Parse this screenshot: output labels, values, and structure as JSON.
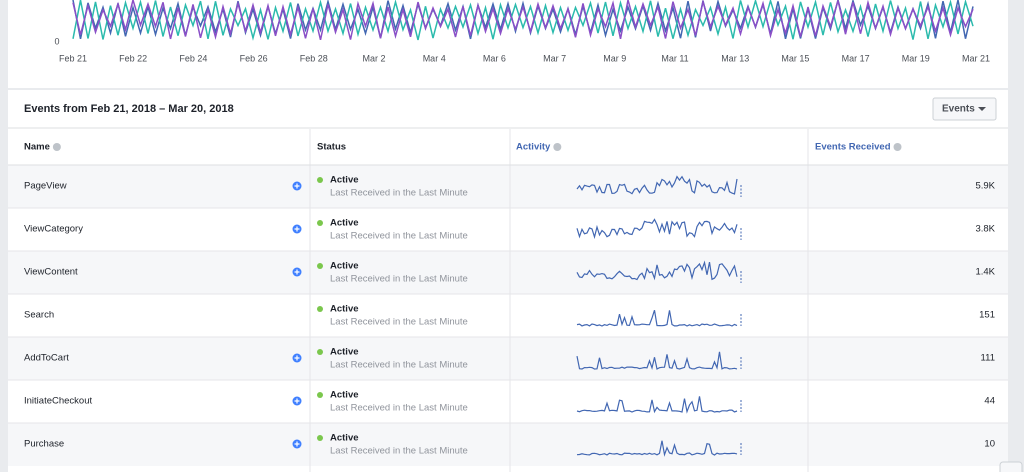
{
  "chart": {
    "y_label": "0",
    "x_labels": [
      "Feb 21",
      "Feb 22",
      "Feb 24",
      "Feb 26",
      "Feb 28",
      "Mar 2",
      "Mar 4",
      "Mar 6",
      "Mar 7",
      "Mar 9",
      "Mar 11",
      "Mar 13",
      "Mar 15",
      "Mar 17",
      "Mar 19",
      "Mar 21"
    ]
  },
  "table": {
    "title": "Events from Feb 21, 2018 – Mar 20, 2018",
    "button": "Events",
    "columns": [
      "Name",
      "Status",
      "Activity",
      "Events Received"
    ],
    "rows": [
      {
        "name": "PageView",
        "status": "Active",
        "detail": "Last Received in the Last Minute",
        "events": "5.9K"
      },
      {
        "name": "ViewCategory",
        "status": "Active",
        "detail": "Last Received in the Last Minute",
        "events": "3.8K"
      },
      {
        "name": "ViewContent",
        "status": "Active",
        "detail": "Last Received in the Last Minute",
        "events": "1.4K"
      },
      {
        "name": "Search",
        "status": "Active",
        "detail": "Last Received in the Last Minute",
        "events": "151"
      },
      {
        "name": "AddToCart",
        "status": "Active",
        "detail": "Last Received in the Last Minute",
        "events": "111"
      },
      {
        "name": "InitiateCheckout",
        "status": "Active",
        "detail": "Last Received in the Last Minute",
        "events": "44"
      },
      {
        "name": "Purchase",
        "status": "Active",
        "detail": "Last Received in the Last Minute",
        "events": "10"
      }
    ]
  }
}
